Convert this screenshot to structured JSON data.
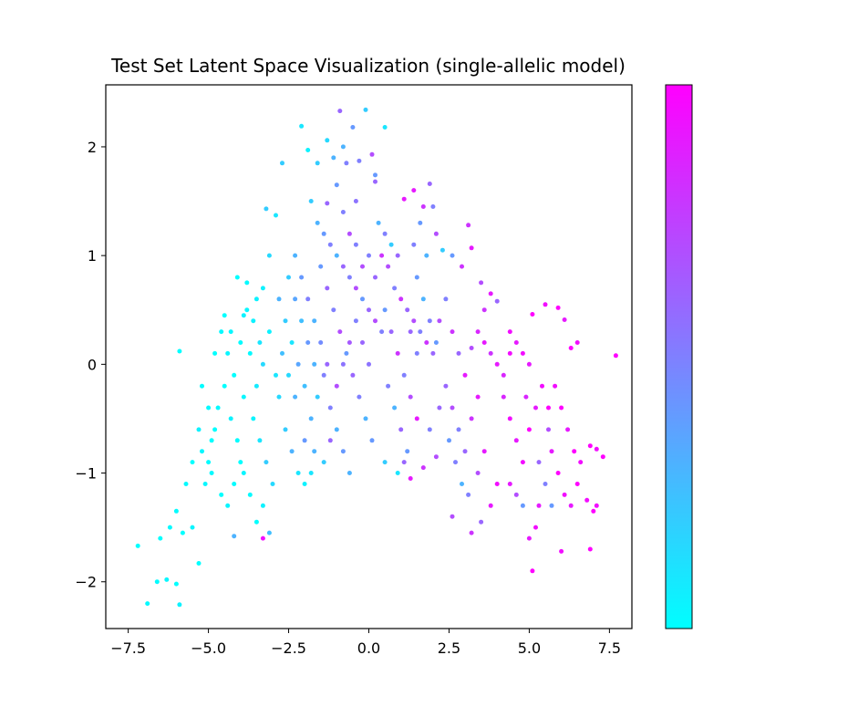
{
  "chart_data": {
    "type": "scatter",
    "title": "Test Set Latent Space Visualization (single-allelic model)",
    "xlabel": "",
    "ylabel": "",
    "xlim": [
      -8.2,
      8.2
    ],
    "ylim": [
      -2.43,
      2.57
    ],
    "x_ticks": [
      -7.5,
      -5.0,
      -2.5,
      0.0,
      2.5,
      5.0,
      7.5
    ],
    "x_tick_labels": [
      "−7.5",
      "−5.0",
      "−2.5",
      "0.0",
      "2.5",
      "5.0",
      "7.5"
    ],
    "y_ticks": [
      -2,
      -1,
      0,
      1,
      2
    ],
    "y_tick_labels": [
      "−2",
      "−1",
      "0",
      "1",
      "2"
    ],
    "colormap": "cool",
    "colormap_colors": [
      "#00ffff",
      "#ff00ff"
    ],
    "colorbar": true,
    "colorbar_tick_labels": [],
    "grid": false,
    "legend": "none",
    "point_color": "#000000",
    "frame_color": "#000000",
    "points_note_format": "[x, y, c] where c in [0,1] maps cyan->magenta",
    "points": [
      [
        -7.2,
        -1.67,
        0.0
      ],
      [
        -6.9,
        -2.2,
        0.02
      ],
      [
        -6.6,
        -2.0,
        0.01
      ],
      [
        -6.3,
        -1.98,
        0.03
      ],
      [
        -6.0,
        -2.02,
        0.0
      ],
      [
        -5.9,
        -2.21,
        0.05
      ],
      [
        -6.5,
        -1.6,
        0.0
      ],
      [
        -6.2,
        -1.5,
        0.02
      ],
      [
        -5.8,
        -1.55,
        0.0
      ],
      [
        -5.5,
        -1.5,
        0.04
      ],
      [
        -5.3,
        -1.83,
        0.0
      ],
      [
        -6.0,
        -1.35,
        0.01
      ],
      [
        -5.9,
        0.12,
        0.0
      ],
      [
        -5.7,
        -1.1,
        0.02
      ],
      [
        -5.5,
        -0.9,
        0.0
      ],
      [
        -5.2,
        -0.8,
        0.03
      ],
      [
        -5.0,
        -0.9,
        0.01
      ],
      [
        -4.8,
        -0.6,
        0.0
      ],
      [
        -5.3,
        -0.6,
        0.05
      ],
      [
        -4.9,
        -1.0,
        0.02
      ],
      [
        -4.6,
        -1.2,
        0.0
      ],
      [
        -4.4,
        -1.3,
        0.04
      ],
      [
        -4.2,
        -1.1,
        0.01
      ],
      [
        -4.0,
        -0.9,
        0.0
      ],
      [
        -5.1,
        -1.1,
        0.03
      ],
      [
        -4.7,
        -0.4,
        0.02
      ],
      [
        -4.5,
        -0.2,
        0.0
      ],
      [
        -4.3,
        -0.5,
        0.05
      ],
      [
        -4.1,
        -0.7,
        0.01
      ],
      [
        -3.9,
        -0.3,
        0.03
      ],
      [
        -4.8,
        0.1,
        0.0
      ],
      [
        -4.6,
        0.3,
        0.02
      ],
      [
        -4.4,
        0.1,
        0.04
      ],
      [
        -4.2,
        -0.1,
        0.0
      ],
      [
        -4.0,
        0.2,
        0.01
      ],
      [
        -3.8,
        0.5,
        0.03
      ],
      [
        -4.1,
        0.8,
        0.0
      ],
      [
        -3.8,
        0.75,
        0.02
      ],
      [
        -3.6,
        0.4,
        0.05
      ],
      [
        -3.4,
        0.2,
        0.1
      ],
      [
        -3.3,
        0.0,
        0.15
      ],
      [
        -3.5,
        -0.2,
        0.08
      ],
      [
        -3.6,
        -0.5,
        0.04
      ],
      [
        -3.4,
        -0.7,
        0.1
      ],
      [
        -3.2,
        -0.9,
        0.2
      ],
      [
        -3.0,
        -1.1,
        0.15
      ],
      [
        -3.3,
        -1.3,
        0.05
      ],
      [
        -3.1,
        -1.55,
        0.25
      ],
      [
        -3.3,
        -1.6,
        0.95
      ],
      [
        -4.2,
        -1.58,
        0.3
      ],
      [
        -3.5,
        -1.45,
        0.0
      ],
      [
        -3.7,
        -1.2,
        0.02
      ],
      [
        -3.9,
        -1.0,
        0.04
      ],
      [
        -3.2,
        1.43,
        0.2
      ],
      [
        -2.9,
        1.37,
        0.1
      ],
      [
        -3.1,
        1.0,
        0.15
      ],
      [
        -3.3,
        0.7,
        0.05
      ],
      [
        -2.8,
        0.6,
        0.3
      ],
      [
        -2.6,
        0.4,
        0.2
      ],
      [
        -2.4,
        0.2,
        0.1
      ],
      [
        -2.2,
        0.0,
        0.35
      ],
      [
        -2.0,
        -0.2,
        0.25
      ],
      [
        -2.8,
        -0.3,
        0.15
      ],
      [
        -2.6,
        -0.6,
        0.2
      ],
      [
        -2.4,
        -0.8,
        0.3
      ],
      [
        -2.2,
        -1.0,
        0.1
      ],
      [
        -2.0,
        -0.7,
        0.4
      ],
      [
        -1.8,
        -0.5,
        0.3
      ],
      [
        -1.6,
        -0.3,
        0.2
      ],
      [
        -1.4,
        -0.1,
        0.5
      ],
      [
        -2.3,
        1.0,
        0.3
      ],
      [
        -2.1,
        0.8,
        0.4
      ],
      [
        -1.9,
        0.6,
        0.5
      ],
      [
        -1.7,
        0.4,
        0.3
      ],
      [
        -1.5,
        0.2,
        0.45
      ],
      [
        -1.3,
        0.0,
        0.6
      ],
      [
        -2.7,
        1.85,
        0.2
      ],
      [
        -2.1,
        2.19,
        0.1
      ],
      [
        -1.9,
        1.97,
        0.05
      ],
      [
        -1.6,
        1.85,
        0.2
      ],
      [
        -1.3,
        2.06,
        0.15
      ],
      [
        -1.1,
        1.9,
        0.3
      ],
      [
        -0.9,
        2.33,
        0.6
      ],
      [
        -0.5,
        2.18,
        0.4
      ],
      [
        -0.8,
        2.0,
        0.3
      ],
      [
        -0.7,
        1.85,
        0.5
      ],
      [
        -1.0,
        1.65,
        0.4
      ],
      [
        -1.3,
        1.48,
        0.6
      ],
      [
        -0.8,
        1.4,
        0.5
      ],
      [
        -0.3,
        1.87,
        0.5
      ],
      [
        -0.1,
        2.34,
        0.2
      ],
      [
        0.1,
        1.93,
        0.7
      ],
      [
        0.2,
        1.74,
        0.4
      ],
      [
        0.5,
        2.18,
        0.1
      ],
      [
        0.2,
        1.68,
        0.6
      ],
      [
        -0.4,
        1.5,
        0.55
      ],
      [
        -1.8,
        1.5,
        0.2
      ],
      [
        -1.6,
        1.3,
        0.3
      ],
      [
        -1.4,
        1.2,
        0.4
      ],
      [
        -1.2,
        1.1,
        0.5
      ],
      [
        -1.0,
        1.0,
        0.3
      ],
      [
        -0.8,
        0.9,
        0.6
      ],
      [
        -0.6,
        0.8,
        0.5
      ],
      [
        -0.4,
        0.7,
        0.7
      ],
      [
        -0.2,
        0.6,
        0.4
      ],
      [
        0.0,
        0.5,
        0.6
      ],
      [
        0.2,
        0.4,
        0.7
      ],
      [
        0.4,
        0.3,
        0.5
      ],
      [
        -1.5,
        0.9,
        0.4
      ],
      [
        -1.3,
        0.7,
        0.6
      ],
      [
        -1.1,
        0.5,
        0.5
      ],
      [
        -0.9,
        0.3,
        0.7
      ],
      [
        -0.7,
        0.1,
        0.4
      ],
      [
        -0.5,
        -0.1,
        0.6
      ],
      [
        -0.3,
        -0.3,
        0.5
      ],
      [
        -0.1,
        -0.5,
        0.3
      ],
      [
        0.1,
        -0.7,
        0.4
      ],
      [
        -1.2,
        -0.4,
        0.5
      ],
      [
        -1.0,
        -0.6,
        0.3
      ],
      [
        -0.8,
        -0.8,
        0.4
      ],
      [
        -0.6,
        -1.0,
        0.3
      ],
      [
        -1.4,
        -0.9,
        0.2
      ],
      [
        -1.2,
        -0.7,
        0.6
      ],
      [
        -1.8,
        -1.0,
        0.1
      ],
      [
        -2.0,
        -1.1,
        0.05
      ],
      [
        -1.7,
        -0.8,
        0.3
      ],
      [
        0.3,
        1.3,
        0.3
      ],
      [
        0.5,
        1.2,
        0.5
      ],
      [
        0.7,
        1.1,
        0.2
      ],
      [
        0.9,
        1.0,
        0.6
      ],
      [
        0.6,
        0.9,
        0.7
      ],
      [
        0.8,
        0.7,
        0.5
      ],
      [
        1.0,
        0.6,
        0.8
      ],
      [
        1.2,
        0.5,
        0.6
      ],
      [
        1.4,
        0.4,
        0.7
      ],
      [
        1.6,
        0.3,
        0.5
      ],
      [
        1.8,
        0.2,
        0.8
      ],
      [
        2.0,
        0.1,
        0.6
      ],
      [
        0.5,
        0.5,
        0.4
      ],
      [
        0.7,
        0.3,
        0.6
      ],
      [
        0.9,
        0.1,
        0.8
      ],
      [
        1.1,
        -0.1,
        0.5
      ],
      [
        1.3,
        -0.3,
        0.7
      ],
      [
        1.5,
        -0.5,
        0.9
      ],
      [
        0.6,
        -0.2,
        0.5
      ],
      [
        0.8,
        -0.4,
        0.3
      ],
      [
        1.0,
        -0.6,
        0.6
      ],
      [
        1.2,
        -0.8,
        0.4
      ],
      [
        0.5,
        -0.9,
        0.2
      ],
      [
        0.9,
        -1.0,
        0.1
      ],
      [
        1.3,
        -1.05,
        0.9
      ],
      [
        1.1,
        -0.9,
        0.6
      ],
      [
        1.7,
        -0.95,
        0.8
      ],
      [
        2.1,
        -0.85,
        0.7
      ],
      [
        1.9,
        -0.6,
        0.5
      ],
      [
        2.2,
        -0.4,
        0.6
      ],
      [
        1.1,
        1.52,
        0.9
      ],
      [
        1.4,
        1.6,
        0.9
      ],
      [
        1.7,
        1.45,
        0.8
      ],
      [
        1.9,
        1.66,
        0.6
      ],
      [
        2.0,
        1.45,
        0.5
      ],
      [
        2.1,
        1.2,
        0.7
      ],
      [
        1.6,
        1.3,
        0.4
      ],
      [
        1.4,
        1.1,
        0.5
      ],
      [
        1.8,
        1.0,
        0.3
      ],
      [
        2.3,
        1.05,
        0.2
      ],
      [
        2.6,
        1.0,
        0.4
      ],
      [
        2.9,
        0.9,
        0.8
      ],
      [
        3.1,
        1.28,
        0.8
      ],
      [
        3.2,
        1.07,
        0.9
      ],
      [
        3.5,
        0.75,
        0.7
      ],
      [
        3.8,
        0.65,
        0.9
      ],
      [
        4.0,
        0.58,
        0.6
      ],
      [
        3.6,
        0.5,
        0.8
      ],
      [
        2.4,
        0.6,
        0.5
      ],
      [
        2.2,
        0.4,
        0.7
      ],
      [
        2.6,
        0.3,
        0.8
      ],
      [
        2.8,
        0.1,
        0.6
      ],
      [
        3.0,
        -0.1,
        0.9
      ],
      [
        3.2,
        0.15,
        0.7
      ],
      [
        3.4,
        0.3,
        0.85
      ],
      [
        3.6,
        0.2,
        0.9
      ],
      [
        3.8,
        0.1,
        0.8
      ],
      [
        4.0,
        0.0,
        0.9
      ],
      [
        4.2,
        -0.1,
        0.85
      ],
      [
        4.4,
        0.1,
        0.95
      ],
      [
        2.4,
        -0.2,
        0.6
      ],
      [
        2.6,
        -0.4,
        0.7
      ],
      [
        2.8,
        -0.6,
        0.5
      ],
      [
        3.0,
        -0.8,
        0.6
      ],
      [
        3.2,
        -0.5,
        0.8
      ],
      [
        3.4,
        -0.3,
        0.9
      ],
      [
        2.5,
        -0.7,
        0.4
      ],
      [
        2.7,
        -0.9,
        0.5
      ],
      [
        2.9,
        -1.1,
        0.3
      ],
      [
        3.1,
        -1.2,
        0.5
      ],
      [
        3.4,
        -1.0,
        0.7
      ],
      [
        3.6,
        -0.8,
        0.9
      ],
      [
        2.6,
        -1.4,
        0.7
      ],
      [
        3.2,
        -1.55,
        0.8
      ],
      [
        3.5,
        -1.45,
        0.6
      ],
      [
        3.8,
        -1.3,
        0.9
      ],
      [
        4.0,
        -1.1,
        0.95
      ],
      [
        4.4,
        -1.1,
        0.9
      ],
      [
        4.6,
        -1.2,
        0.7
      ],
      [
        4.8,
        -1.3,
        0.4
      ],
      [
        5.0,
        -1.6,
        0.9
      ],
      [
        5.1,
        -1.9,
        1.0
      ],
      [
        5.2,
        -1.5,
        0.95
      ],
      [
        5.3,
        -1.3,
        0.9
      ],
      [
        4.4,
        0.3,
        0.95
      ],
      [
        4.6,
        0.2,
        0.9
      ],
      [
        4.8,
        0.1,
        0.95
      ],
      [
        5.0,
        0.0,
        0.9
      ],
      [
        4.2,
        -0.3,
        0.85
      ],
      [
        4.4,
        -0.5,
        0.95
      ],
      [
        4.6,
        -0.7,
        0.9
      ],
      [
        4.8,
        -0.9,
        0.95
      ],
      [
        5.0,
        -0.6,
        1.0
      ],
      [
        5.2,
        -0.4,
        0.9
      ],
      [
        5.4,
        -0.2,
        0.95
      ],
      [
        5.6,
        -0.4,
        1.0
      ],
      [
        5.1,
        0.46,
        1.0
      ],
      [
        5.5,
        0.55,
        0.95
      ],
      [
        5.9,
        0.52,
        1.0
      ],
      [
        6.1,
        0.41,
        0.9
      ],
      [
        6.3,
        0.15,
        1.0
      ],
      [
        6.5,
        0.2,
        0.95
      ],
      [
        5.8,
        -0.2,
        0.95
      ],
      [
        6.0,
        -0.4,
        1.0
      ],
      [
        6.2,
        -0.6,
        0.9
      ],
      [
        6.4,
        -0.8,
        1.0
      ],
      [
        6.6,
        -0.9,
        0.95
      ],
      [
        5.7,
        -0.8,
        0.9
      ],
      [
        5.9,
        -1.0,
        1.0
      ],
      [
        6.1,
        -1.2,
        0.95
      ],
      [
        6.3,
        -1.3,
        0.9
      ],
      [
        6.5,
        -1.1,
        1.0
      ],
      [
        6.8,
        -1.25,
        0.95
      ],
      [
        7.0,
        -1.35,
        1.0
      ],
      [
        7.1,
        -1.3,
        0.95
      ],
      [
        6.9,
        -1.7,
        1.0
      ],
      [
        6.0,
        -1.72,
        0.95
      ],
      [
        6.9,
        -0.75,
        1.0
      ],
      [
        7.1,
        -0.78,
        0.95
      ],
      [
        7.3,
        -0.85,
        1.0
      ],
      [
        7.7,
        0.08,
        1.0
      ],
      [
        5.3,
        -0.9,
        0.6
      ],
      [
        5.5,
        -1.1,
        0.5
      ],
      [
        5.7,
        -1.3,
        0.4
      ],
      [
        5.6,
        -0.6,
        0.7
      ],
      [
        4.9,
        -0.3,
        0.85
      ],
      [
        -0.2,
        0.9,
        0.7
      ],
      [
        0.0,
        1.0,
        0.5
      ],
      [
        0.2,
        0.8,
        0.6
      ],
      [
        -0.4,
        1.1,
        0.5
      ],
      [
        -0.6,
        1.2,
        0.7
      ],
      [
        0.4,
        1.0,
        0.8
      ],
      [
        -2.5,
        0.8,
        0.2
      ],
      [
        -2.3,
        0.6,
        0.35
      ],
      [
        -2.1,
        0.4,
        0.25
      ],
      [
        -1.9,
        0.2,
        0.4
      ],
      [
        -1.7,
        0.0,
        0.3
      ],
      [
        -2.9,
        -0.1,
        0.1
      ],
      [
        -3.1,
        0.3,
        0.05
      ],
      [
        -2.7,
        0.1,
        0.25
      ],
      [
        -2.5,
        -0.1,
        0.15
      ],
      [
        -2.3,
        -0.3,
        0.3
      ],
      [
        -3.7,
        0.1,
        0.02
      ],
      [
        -3.5,
        0.6,
        0.05
      ],
      [
        -1.0,
        -0.2,
        0.7
      ],
      [
        -0.8,
        0.0,
        0.55
      ],
      [
        -0.6,
        0.2,
        0.65
      ],
      [
        -0.4,
        0.4,
        0.5
      ],
      [
        -0.2,
        0.2,
        0.6
      ],
      [
        0.0,
        0.0,
        0.55
      ],
      [
        1.5,
        0.8,
        0.4
      ],
      [
        1.7,
        0.6,
        0.3
      ],
      [
        1.9,
        0.4,
        0.5
      ],
      [
        2.1,
        0.2,
        0.4
      ],
      [
        1.3,
        0.3,
        0.6
      ],
      [
        1.5,
        0.1,
        0.5
      ],
      [
        -4.5,
        0.45,
        0.0
      ],
      [
        -4.3,
        0.3,
        0.03
      ],
      [
        -3.9,
        0.45,
        0.05
      ],
      [
        -5.0,
        -0.4,
        0.02
      ],
      [
        -5.2,
        -0.2,
        0.01
      ],
      [
        -4.9,
        -0.7,
        0.0
      ]
    ]
  }
}
